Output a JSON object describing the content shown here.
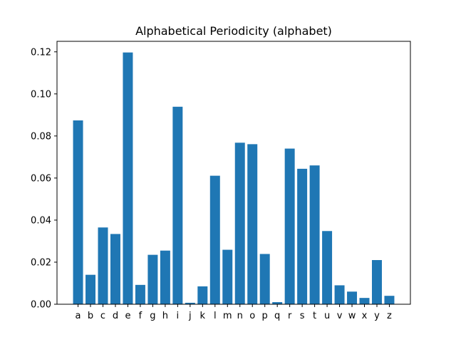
{
  "chart_data": {
    "type": "bar",
    "title": "Alphabetical Periodicity (alphabet)",
    "xlabel": "",
    "ylabel": "",
    "categories": [
      "a",
      "b",
      "c",
      "d",
      "e",
      "f",
      "g",
      "h",
      "i",
      "j",
      "k",
      "l",
      "m",
      "n",
      "o",
      "p",
      "q",
      "r",
      "s",
      "t",
      "u",
      "v",
      "w",
      "x",
      "y",
      "z"
    ],
    "values": [
      0.0874,
      0.014,
      0.0365,
      0.0334,
      0.1197,
      0.0092,
      0.0235,
      0.0255,
      0.0939,
      0.0007,
      0.0085,
      0.0611,
      0.0259,
      0.0768,
      0.0761,
      0.0239,
      0.001,
      0.074,
      0.0644,
      0.066,
      0.0348,
      0.009,
      0.006,
      0.003,
      0.021,
      0.004
    ],
    "ylim": [
      0,
      0.125
    ],
    "yticks": [
      0.0,
      0.02,
      0.04,
      0.06,
      0.08,
      0.1,
      0.12
    ],
    "ytick_labels": [
      "0.00",
      "0.02",
      "0.04",
      "0.06",
      "0.08",
      "0.10",
      "0.12"
    ],
    "bar_color": "#1f77b4",
    "grid": false,
    "legend": "none"
  }
}
